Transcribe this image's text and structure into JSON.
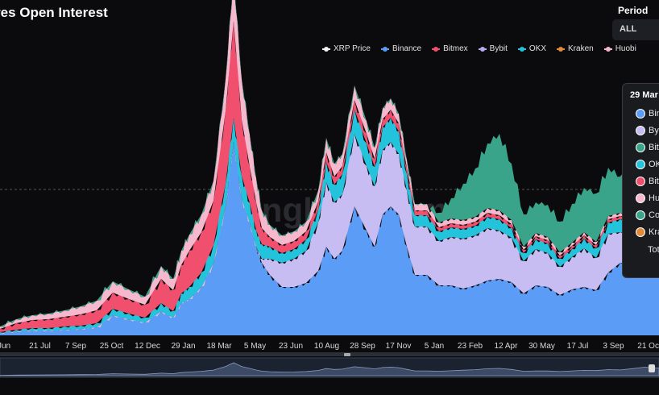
{
  "title": "res Open Interest",
  "period": {
    "label": "Period",
    "selected": "ALL"
  },
  "watermark": "coinglass.com",
  "legend": [
    {
      "name": "XRP Price",
      "color": "#f2f2f2"
    },
    {
      "name": "Binance",
      "color": "#5b9cf6"
    },
    {
      "name": "Bitmex",
      "color": "#f0506e"
    },
    {
      "name": "Bybit",
      "color": "#b9a9ef"
    },
    {
      "name": "OKX",
      "color": "#24c3dc"
    },
    {
      "name": "Kraken",
      "color": "#e08a3c"
    },
    {
      "name": "Huobi",
      "color": "#f5b8cc"
    }
  ],
  "tooltip": {
    "date": "29 Mar",
    "rows": [
      {
        "label": "Bin",
        "color": "#5b9cf6"
      },
      {
        "label": "By",
        "color": "#c7bdf2"
      },
      {
        "label": "Bit",
        "color": "#3aa48a"
      },
      {
        "label": "OK",
        "color": "#24c3dc"
      },
      {
        "label": "Bit",
        "color": "#f0506e"
      },
      {
        "label": "Hu",
        "color": "#f5b8cc"
      },
      {
        "label": "Co",
        "color": "#3aa48a"
      },
      {
        "label": "Kra",
        "color": "#e08a3c"
      }
    ],
    "total_label": "Tot"
  },
  "chart_data": {
    "type": "area",
    "stacked": true,
    "x_tick_labels": [
      "Jun",
      "21 Jul",
      "7 Sep",
      "25 Oct",
      "12 Dec",
      "29 Jan",
      "18 Mar",
      "5 May",
      "23 Jun",
      "10 Aug",
      "28 Sep",
      "17 Nov",
      "5 Jan",
      "23 Feb",
      "12 Apr",
      "30 May",
      "17 Jul",
      "3 Sep",
      "21 Oct"
    ],
    "series_colors": {
      "Binance": "#5b9cf6",
      "Bybit": "#c7bdf2",
      "OKX": "#24c3dc",
      "Bitmex": "#f0506e",
      "Huobi": "#f5b8cc",
      "Coinbase": "#3aa48a",
      "Kraken": "#e08a3c",
      "XRP Price": "#f2f2f2"
    },
    "y_axis_visible": false,
    "grid": "single dashed reference line",
    "legend_position": "top-right",
    "stack_order": [
      "Binance",
      "Bybit",
      "OKX",
      "Bitmex",
      "Huobi",
      "Coinbase"
    ],
    "x": [
      0,
      20,
      40,
      60,
      80,
      100,
      120,
      140,
      160,
      180,
      200,
      215,
      225,
      235,
      250,
      265,
      280,
      290,
      300,
      310,
      318,
      325,
      335,
      350,
      365,
      380,
      395,
      405,
      415,
      425,
      440,
      455,
      465,
      475,
      485,
      495,
      505,
      515,
      530,
      545,
      560,
      575,
      590,
      605,
      620,
      635,
      650,
      665,
      680,
      695,
      710,
      725,
      740,
      755,
      770,
      785,
      800,
      818
    ],
    "series": [
      {
        "name": "Binance",
        "values": [
          3,
          5,
          6,
          6,
          7,
          8,
          10,
          25,
          20,
          16,
          30,
          22,
          40,
          45,
          60,
          90,
          160,
          240,
          170,
          140,
          110,
          90,
          75,
          60,
          60,
          65,
          80,
          110,
          95,
          105,
          160,
          130,
          110,
          150,
          160,
          150,
          110,
          75,
          75,
          62,
          62,
          58,
          62,
          68,
          70,
          66,
          52,
          62,
          60,
          50,
          57,
          60,
          56,
          78,
          90,
          88,
          120,
          110
        ]
      },
      {
        "name": "Bybit",
        "values": [
          0,
          0,
          0,
          0,
          0,
          0,
          0,
          0,
          0,
          0,
          0,
          0,
          0,
          0,
          0,
          0,
          0,
          0,
          0,
          0,
          0,
          5,
          20,
          30,
          35,
          40,
          60,
          80,
          70,
          70,
          90,
          80,
          75,
          80,
          80,
          75,
          70,
          60,
          60,
          55,
          60,
          62,
          62,
          65,
          60,
          55,
          40,
          45,
          42,
          35,
          40,
          48,
          40,
          48,
          38,
          40,
          48,
          42
        ]
      },
      {
        "name": "OKX",
        "values": [
          1,
          2,
          3,
          3,
          4,
          4,
          5,
          8,
          7,
          6,
          10,
          8,
          12,
          15,
          18,
          22,
          28,
          30,
          28,
          24,
          20,
          18,
          15,
          12,
          12,
          14,
          16,
          25,
          22,
          25,
          30,
          28,
          24,
          28,
          30,
          28,
          20,
          14,
          14,
          12,
          12,
          12,
          12,
          14,
          14,
          12,
          10,
          12,
          12,
          10,
          10,
          12,
          12,
          14,
          16,
          15,
          16,
          14
        ]
      },
      {
        "name": "Bitmex",
        "values": [
          4,
          8,
          10,
          11,
          12,
          14,
          16,
          20,
          18,
          16,
          30,
          26,
          35,
          45,
          50,
          55,
          90,
          120,
          70,
          45,
          35,
          20,
          12,
          10,
          10,
          10,
          10,
          12,
          10,
          10,
          12,
          12,
          10,
          10,
          10,
          10,
          8,
          6,
          6,
          5,
          5,
          5,
          5,
          5,
          5,
          5,
          4,
          4,
          4,
          4,
          4,
          4,
          4,
          4,
          4,
          4,
          4,
          4
        ]
      },
      {
        "name": "Huobi",
        "values": [
          3,
          5,
          6,
          7,
          8,
          10,
          12,
          14,
          12,
          10,
          16,
          14,
          18,
          20,
          22,
          25,
          40,
          55,
          50,
          40,
          30,
          22,
          15,
          12,
          12,
          12,
          14,
          18,
          16,
          15,
          18,
          16,
          14,
          14,
          14,
          12,
          10,
          8,
          8,
          6,
          6,
          6,
          6,
          6,
          6,
          5,
          4,
          4,
          4,
          4,
          4,
          4,
          4,
          4,
          4,
          4,
          4,
          4
        ]
      },
      {
        "name": "Coinbase",
        "values": [
          0,
          0,
          0,
          0,
          0,
          0,
          0,
          0,
          0,
          0,
          0,
          0,
          0,
          0,
          0,
          0,
          0,
          0,
          0,
          0,
          0,
          0,
          0,
          0,
          0,
          0,
          0,
          0,
          0,
          0,
          0,
          0,
          0,
          0,
          0,
          0,
          0,
          0,
          0,
          12,
          25,
          45,
          60,
          80,
          95,
          70,
          40,
          38,
          40,
          38,
          48,
          55,
          60,
          60,
          45,
          90,
          100,
          90
        ]
      }
    ],
    "navigator_x_range": "full history"
  }
}
